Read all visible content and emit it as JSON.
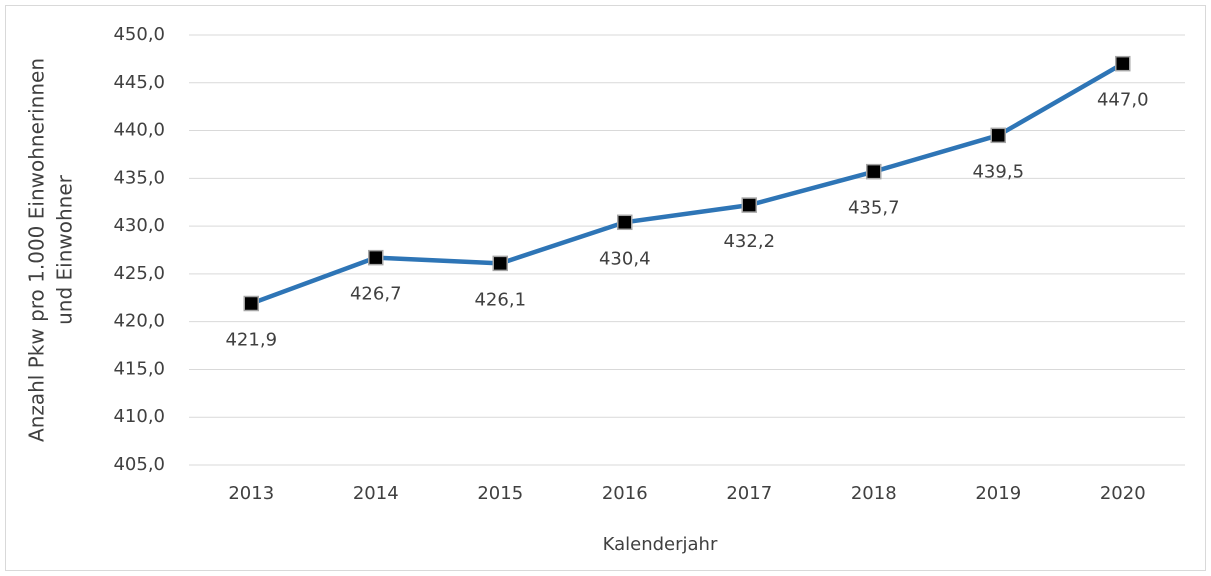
{
  "chart_data": {
    "type": "line",
    "xlabel": "Kalenderjahr",
    "ylabel": [
      "Anzahl Pkw pro 1.000 Einwohnerinnen",
      "und Einwohner"
    ],
    "categories": [
      "2013",
      "2014",
      "2015",
      "2016",
      "2017",
      "2018",
      "2019",
      "2020"
    ],
    "series": [
      {
        "color": "#2e75b6",
        "marker_color": "#000000",
        "values": [
          421.9,
          426.7,
          426.1,
          430.4,
          432.2,
          435.7,
          439.5,
          447.0
        ],
        "value_labels": [
          "421,9",
          "426,7",
          "426,1",
          "430,4",
          "432,2",
          "435,7",
          "439,5",
          "447,0"
        ]
      }
    ],
    "ylim": [
      405,
      450
    ],
    "yticks": [
      {
        "value": 405,
        "label": "405,0"
      },
      {
        "value": 410,
        "label": "410,0"
      },
      {
        "value": 415,
        "label": "415,0"
      },
      {
        "value": 420,
        "label": "420,0"
      },
      {
        "value": 425,
        "label": "425,0"
      },
      {
        "value": 430,
        "label": "430,0"
      },
      {
        "value": 435,
        "label": "435,0"
      },
      {
        "value": 440,
        "label": "440,0"
      },
      {
        "value": 445,
        "label": "445,0"
      },
      {
        "value": 450,
        "label": "450,0"
      }
    ],
    "grid": true
  }
}
